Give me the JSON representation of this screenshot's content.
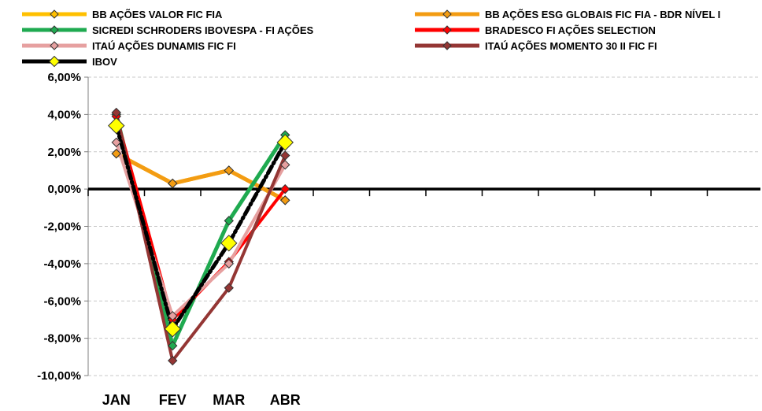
{
  "chart_data": {
    "type": "line",
    "categories": [
      "JAN",
      "FEV",
      "MAR",
      "ABR"
    ],
    "ylim": [
      -10,
      6
    ],
    "yticks": [
      6,
      4,
      2,
      0,
      -2,
      -4,
      -6,
      -8,
      -10
    ],
    "ytick_labels": [
      "6,00%",
      "4,00%",
      "2,00%",
      "0,00%",
      "-2,00%",
      "-4,00%",
      "-6,00%",
      "-8,00%",
      "-10,00%"
    ],
    "grid": true,
    "legend_position": "top",
    "series": [
      {
        "name": "BB AÇÕES VALOR FIC FIA",
        "color": "#FFC000",
        "values": [
          1.9,
          0.3,
          1.0,
          -0.6
        ]
      },
      {
        "name": "BB AÇÕES ESG GLOBAIS FIC FIA - BDR NÍVEL I",
        "color": "#F39C12",
        "values": [
          1.9,
          0.3,
          1.0,
          -0.6
        ]
      },
      {
        "name": "SICREDI SCHRODERS IBOVESPA - FI AÇÕES",
        "color": "#1FAA50",
        "values": [
          4.0,
          -8.4,
          -1.7,
          2.9
        ]
      },
      {
        "name": "BRADESCO FI AÇÕES SELECTION",
        "color": "#FF0000",
        "values": [
          3.9,
          -7.0,
          -3.9,
          0.0
        ]
      },
      {
        "name": "ITAÚ AÇÕES DUNAMIS FIC FI",
        "color": "#E6A0A0",
        "values": [
          2.5,
          -6.8,
          -4.0,
          1.3
        ]
      },
      {
        "name": "ITAÚ AÇÕES MOMENTO 30 II FIC FI",
        "color": "#943634",
        "values": [
          4.1,
          -9.2,
          -5.3,
          1.8
        ]
      },
      {
        "name": "IBOV",
        "color": "#000000",
        "values": [
          3.4,
          -7.5,
          -2.9,
          2.5
        ]
      }
    ]
  }
}
